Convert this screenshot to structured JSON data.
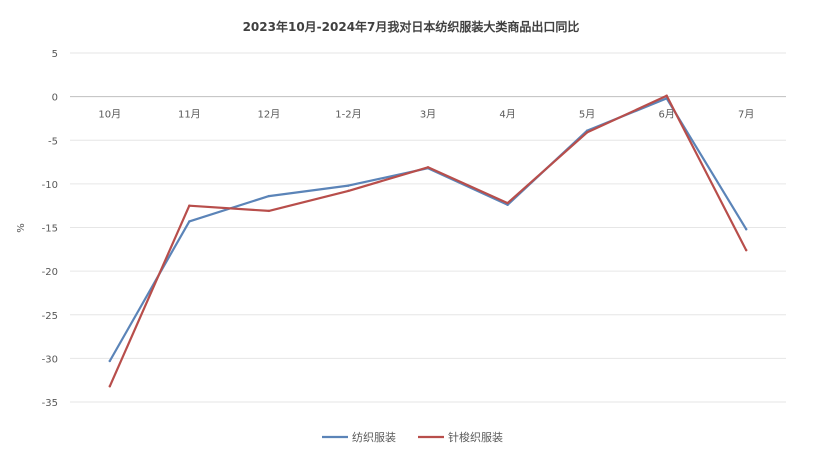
{
  "chart_data": {
    "type": "line",
    "title": "2023年10月-2024年7月我对日本纺织服装大类商品出口同比",
    "ylabel": "%",
    "xlabel": "",
    "categories": [
      "10月",
      "11月",
      "12月",
      "1-2月",
      "3月",
      "4月",
      "5月",
      "6月",
      "7月"
    ],
    "ylim": [
      -35,
      5
    ],
    "yticks": [
      5,
      0,
      -5,
      -10,
      -15,
      -20,
      -25,
      -30,
      -35
    ],
    "grid": true,
    "legend_position": "bottom",
    "series": [
      {
        "name": "纺织服装",
        "color": "#5b84b8",
        "values": [
          -30.3,
          -14.3,
          -11.4,
          -10.2,
          -8.2,
          -12.4,
          -3.9,
          -0.2,
          -15.2
        ]
      },
      {
        "name": "针梭织服装",
        "color": "#b84e4b",
        "values": [
          -33.2,
          -12.5,
          -13.1,
          -10.8,
          -8.1,
          -12.2,
          -4.1,
          0.1,
          -17.6
        ]
      }
    ]
  }
}
